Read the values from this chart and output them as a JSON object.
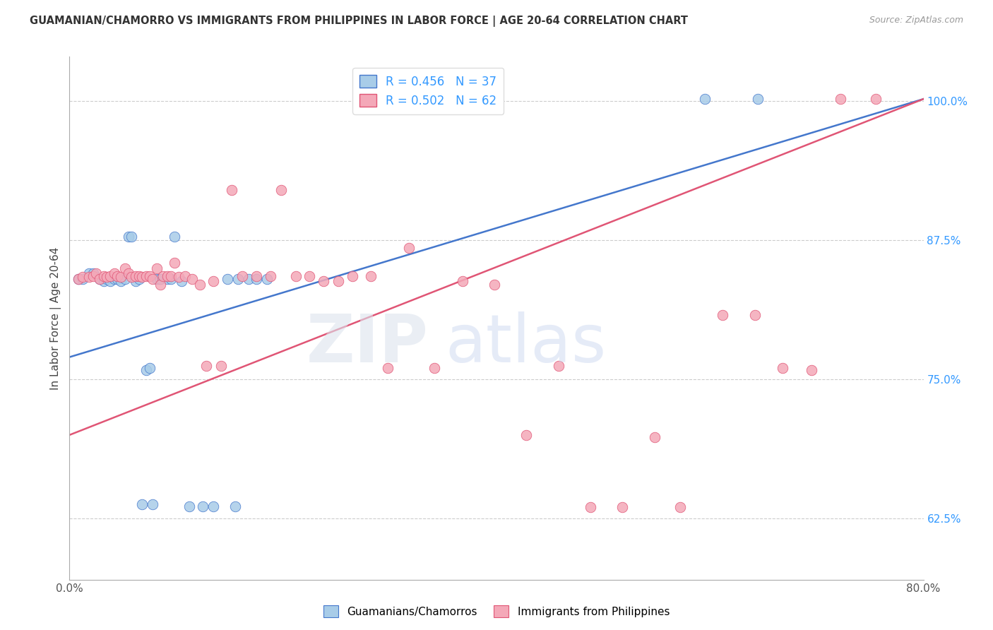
{
  "title": "GUAMANIAN/CHAMORRO VS IMMIGRANTS FROM PHILIPPINES IN LABOR FORCE | AGE 20-64 CORRELATION CHART",
  "source": "Source: ZipAtlas.com",
  "ylabel": "In Labor Force | Age 20-64",
  "xlim": [
    0.0,
    0.8
  ],
  "ylim": [
    0.57,
    1.04
  ],
  "x_ticks": [
    0.0,
    0.1,
    0.2,
    0.3,
    0.4,
    0.5,
    0.6,
    0.7,
    0.8
  ],
  "x_tick_labels": [
    "0.0%",
    "",
    "",
    "",
    "",
    "",
    "",
    "",
    "80.0%"
  ],
  "y_ticks": [
    0.625,
    0.75,
    0.875,
    1.0
  ],
  "y_tick_labels": [
    "62.5%",
    "75.0%",
    "87.5%",
    "100.0%"
  ],
  "line1_color": "#4477cc",
  "line2_color": "#e05575",
  "dot1_color": "#a8cce8",
  "dot2_color": "#f4a8b8",
  "dot1_edge": "#4477cc",
  "dot2_edge": "#e05575",
  "blue_x": [
    0.008,
    0.012,
    0.018,
    0.022,
    0.028,
    0.032,
    0.035,
    0.038,
    0.042,
    0.045,
    0.048,
    0.052,
    0.055,
    0.058,
    0.062,
    0.065,
    0.068,
    0.072,
    0.075,
    0.078,
    0.082,
    0.085,
    0.092,
    0.095,
    0.098,
    0.105,
    0.112,
    0.125,
    0.135,
    0.148,
    0.158,
    0.168,
    0.175,
    0.185,
    0.155,
    0.595,
    0.645
  ],
  "blue_y": [
    0.84,
    0.84,
    0.845,
    0.845,
    0.84,
    0.838,
    0.84,
    0.838,
    0.84,
    0.84,
    0.838,
    0.84,
    0.878,
    0.878,
    0.838,
    0.84,
    0.638,
    0.758,
    0.76,
    0.638,
    0.84,
    0.84,
    0.84,
    0.84,
    0.878,
    0.838,
    0.636,
    0.636,
    0.636,
    0.84,
    0.84,
    0.84,
    0.84,
    0.84,
    0.636,
    1.002,
    1.002
  ],
  "pink_x": [
    0.008,
    0.012,
    0.018,
    0.022,
    0.025,
    0.028,
    0.032,
    0.035,
    0.038,
    0.042,
    0.045,
    0.048,
    0.052,
    0.055,
    0.058,
    0.062,
    0.065,
    0.068,
    0.072,
    0.075,
    0.078,
    0.082,
    0.085,
    0.088,
    0.092,
    0.095,
    0.098,
    0.102,
    0.108,
    0.115,
    0.122,
    0.128,
    0.135,
    0.142,
    0.152,
    0.162,
    0.175,
    0.188,
    0.198,
    0.212,
    0.225,
    0.238,
    0.252,
    0.265,
    0.282,
    0.298,
    0.318,
    0.342,
    0.368,
    0.398,
    0.428,
    0.458,
    0.488,
    0.518,
    0.548,
    0.572,
    0.612,
    0.642,
    0.668,
    0.695,
    0.722,
    0.755
  ],
  "pink_y": [
    0.84,
    0.842,
    0.842,
    0.843,
    0.845,
    0.84,
    0.843,
    0.842,
    0.843,
    0.845,
    0.843,
    0.842,
    0.85,
    0.845,
    0.842,
    0.843,
    0.843,
    0.842,
    0.843,
    0.843,
    0.84,
    0.85,
    0.835,
    0.843,
    0.843,
    0.843,
    0.855,
    0.842,
    0.843,
    0.84,
    0.835,
    0.762,
    0.838,
    0.762,
    0.92,
    0.843,
    0.843,
    0.843,
    0.92,
    0.843,
    0.843,
    0.838,
    0.838,
    0.843,
    0.843,
    0.76,
    0.868,
    0.76,
    0.838,
    0.835,
    0.7,
    0.762,
    0.635,
    0.635,
    0.698,
    0.635,
    0.808,
    0.808,
    0.76,
    0.758,
    1.002,
    1.002
  ],
  "legend1_label": "R = 0.456   N = 37",
  "legend2_label": "R = 0.502   N = 62",
  "legend1_color": "#a8cce8",
  "legend2_color": "#f4a8b8"
}
